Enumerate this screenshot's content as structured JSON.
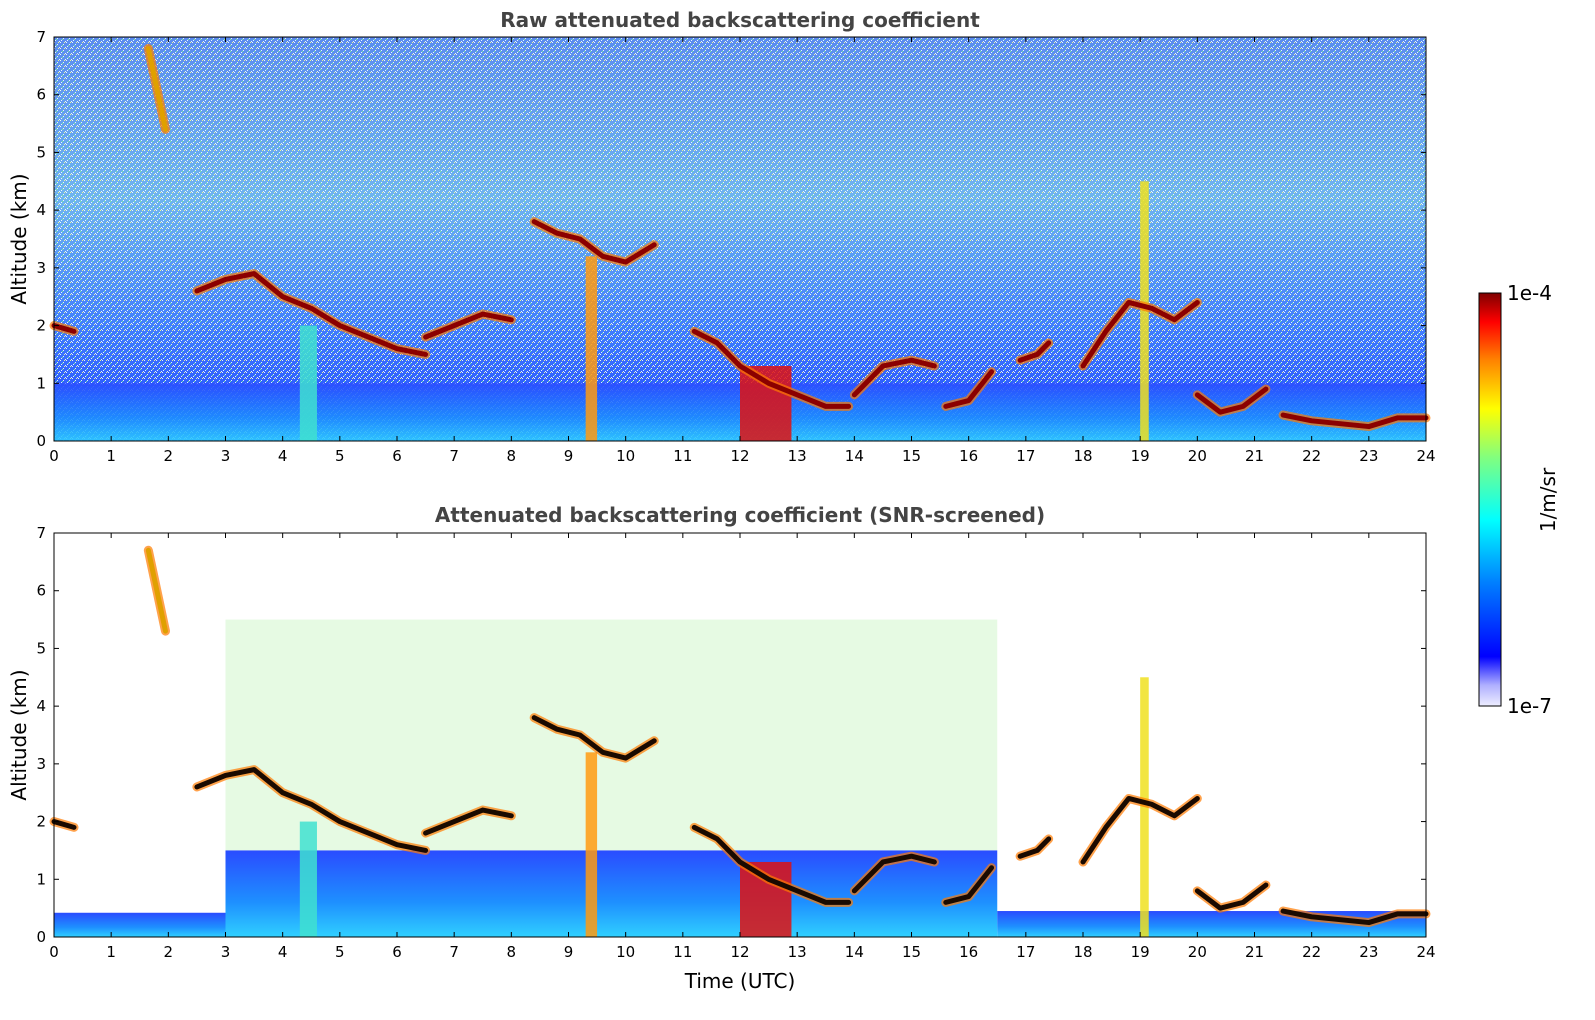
{
  "chart_data": [
    {
      "type": "heatmap",
      "title": "Raw attenuated backscattering coefficient",
      "xlabel": "",
      "ylabel": "Altitude (km)",
      "xlim": [
        0,
        24
      ],
      "ylim": [
        0,
        7
      ],
      "xticks": [
        "0",
        "1",
        "2",
        "3",
        "4",
        "5",
        "6",
        "7",
        "8",
        "9",
        "10",
        "11",
        "12",
        "13",
        "14",
        "15",
        "16",
        "17",
        "18",
        "19",
        "20",
        "21",
        "22",
        "23",
        "24"
      ],
      "yticks": [
        "0",
        "1",
        "2",
        "3",
        "4",
        "5",
        "6",
        "7"
      ],
      "screened": false,
      "cloud_layers": [
        {
          "x": [
            0.0,
            0.35
          ],
          "y": [
            2.0,
            1.9
          ]
        },
        {
          "x": [
            1.65,
            1.95
          ],
          "y": [
            6.8,
            5.4
          ],
          "color": "orange"
        },
        {
          "x": [
            2.5,
            3.0,
            3.5,
            4.0,
            4.5,
            5.0,
            5.5,
            6.0,
            6.5
          ],
          "y": [
            2.6,
            2.8,
            2.9,
            2.5,
            2.3,
            2.0,
            1.8,
            1.6,
            1.5
          ]
        },
        {
          "x": [
            6.5,
            7.0,
            7.5,
            8.0
          ],
          "y": [
            1.8,
            2.0,
            2.2,
            2.1
          ]
        },
        {
          "x": [
            8.4,
            8.8,
            9.2,
            9.6,
            10.0,
            10.5
          ],
          "y": [
            3.8,
            3.6,
            3.5,
            3.2,
            3.1,
            3.4
          ]
        },
        {
          "x": [
            11.2,
            11.6,
            12.0,
            12.5,
            13.0,
            13.5,
            13.9
          ],
          "y": [
            1.9,
            1.7,
            1.3,
            1.0,
            0.8,
            0.6,
            0.6
          ]
        },
        {
          "x": [
            14.0,
            14.5,
            15.0,
            15.4
          ],
          "y": [
            0.8,
            1.3,
            1.4,
            1.3
          ]
        },
        {
          "x": [
            15.6,
            16.0,
            16.4
          ],
          "y": [
            0.6,
            0.7,
            1.2
          ]
        },
        {
          "x": [
            16.9,
            17.2,
            17.4
          ],
          "y": [
            1.4,
            1.5,
            1.7
          ]
        },
        {
          "x": [
            18.0,
            18.4,
            18.8,
            19.2,
            19.6,
            20.0
          ],
          "y": [
            1.3,
            1.9,
            2.4,
            2.3,
            2.1,
            2.4
          ]
        },
        {
          "x": [
            20.0,
            20.4,
            20.8,
            21.2
          ],
          "y": [
            0.8,
            0.5,
            0.6,
            0.9
          ]
        },
        {
          "x": [
            21.5,
            22.0,
            22.5,
            23.0,
            23.5,
            24.0
          ],
          "y": [
            0.45,
            0.35,
            0.3,
            0.25,
            0.4,
            0.4
          ]
        }
      ],
      "precip_shafts": [
        {
          "x": [
            12.0,
            12.9
          ],
          "top": 1.3,
          "color": "red"
        },
        {
          "x": [
            9.3,
            9.5
          ],
          "top": 3.2,
          "color": "orange"
        },
        {
          "x": [
            4.3,
            4.6
          ],
          "top": 2.0,
          "color": "cyan"
        },
        {
          "x": [
            19.0,
            19.15
          ],
          "top": 4.5,
          "color": "yellow"
        }
      ]
    },
    {
      "type": "heatmap",
      "title": "Attenuated backscattering coefficient (SNR-screened)",
      "xlabel": "Time (UTC)",
      "ylabel": "Altitude (km)",
      "xlim": [
        0,
        24
      ],
      "ylim": [
        0,
        7
      ],
      "xticks": [
        "0",
        "1",
        "2",
        "3",
        "4",
        "5",
        "6",
        "7",
        "8",
        "9",
        "10",
        "11",
        "12",
        "13",
        "14",
        "15",
        "16",
        "17",
        "18",
        "19",
        "20",
        "21",
        "22",
        "23",
        "24"
      ],
      "yticks": [
        "0",
        "1",
        "2",
        "3",
        "4",
        "5",
        "6",
        "7"
      ],
      "screened": true,
      "cloud_layers": [
        {
          "x": [
            0.0,
            0.35
          ],
          "y": [
            2.0,
            1.9
          ]
        },
        {
          "x": [
            1.65,
            1.95
          ],
          "y": [
            6.7,
            5.3
          ],
          "color": "orange"
        },
        {
          "x": [
            2.5,
            3.0,
            3.5,
            4.0,
            4.5,
            5.0,
            5.5,
            6.0,
            6.5
          ],
          "y": [
            2.6,
            2.8,
            2.9,
            2.5,
            2.3,
            2.0,
            1.8,
            1.6,
            1.5
          ]
        },
        {
          "x": [
            6.5,
            7.0,
            7.5,
            8.0
          ],
          "y": [
            1.8,
            2.0,
            2.2,
            2.1
          ]
        },
        {
          "x": [
            8.4,
            8.8,
            9.2,
            9.6,
            10.0,
            10.5
          ],
          "y": [
            3.8,
            3.6,
            3.5,
            3.2,
            3.1,
            3.4
          ]
        },
        {
          "x": [
            11.2,
            11.6,
            12.0,
            12.5,
            13.0,
            13.5,
            13.9
          ],
          "y": [
            1.9,
            1.7,
            1.3,
            1.0,
            0.8,
            0.6,
            0.6
          ]
        },
        {
          "x": [
            14.0,
            14.5,
            15.0,
            15.4
          ],
          "y": [
            0.8,
            1.3,
            1.4,
            1.3
          ]
        },
        {
          "x": [
            15.6,
            16.0,
            16.4
          ],
          "y": [
            0.6,
            0.7,
            1.2
          ]
        },
        {
          "x": [
            16.9,
            17.2,
            17.4
          ],
          "y": [
            1.4,
            1.5,
            1.7
          ]
        },
        {
          "x": [
            18.0,
            18.4,
            18.8,
            19.2,
            19.6,
            20.0
          ],
          "y": [
            1.3,
            1.9,
            2.4,
            2.3,
            2.1,
            2.4
          ]
        },
        {
          "x": [
            20.0,
            20.4,
            20.8,
            21.2
          ],
          "y": [
            0.8,
            0.5,
            0.6,
            0.9
          ]
        },
        {
          "x": [
            21.5,
            22.0,
            22.5,
            23.0,
            23.5,
            24.0
          ],
          "y": [
            0.45,
            0.35,
            0.3,
            0.25,
            0.4,
            0.4
          ]
        }
      ],
      "precip_shafts": [
        {
          "x": [
            12.0,
            12.9
          ],
          "top": 1.3,
          "color": "red"
        },
        {
          "x": [
            9.3,
            9.5
          ],
          "top": 3.2,
          "color": "orange"
        },
        {
          "x": [
            4.3,
            4.6
          ],
          "top": 2.0,
          "color": "cyan"
        },
        {
          "x": [
            19.0,
            19.15
          ],
          "top": 4.5,
          "color": "yellow"
        }
      ]
    }
  ],
  "colorbar": {
    "label": "1/m/sr",
    "max_label": "1e-4",
    "min_label": "1e-7",
    "colormap": "jet",
    "scale": "log",
    "colors": [
      "#7f0000",
      "#ff0000",
      "#ff8000",
      "#ffff00",
      "#80ff80",
      "#00ffff",
      "#0080ff",
      "#0000ff",
      "#b0b0ff",
      "#eeeeff"
    ]
  }
}
